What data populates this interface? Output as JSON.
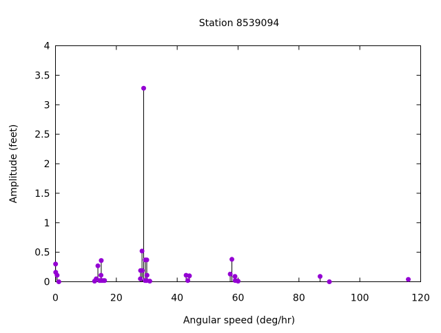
{
  "chart_data": {
    "type": "scatter",
    "style": "impulses-with-points",
    "title": "Station 8539094",
    "xlabel": "Angular speed (deg/hr)",
    "ylabel": "Amplitude (feet)",
    "xlim": [
      0,
      120
    ],
    "ylim": [
      0,
      4
    ],
    "xticks": [
      0,
      20,
      40,
      60,
      80,
      100,
      120
    ],
    "yticks": [
      0,
      0.5,
      1,
      1.5,
      2,
      2.5,
      3,
      3.5,
      4
    ],
    "grid": false,
    "legend": "none",
    "point_color": "#9400d3",
    "stem_color": "#000000",
    "x": [
      0.04,
      0.08,
      0.54,
      1.1,
      12.85,
      13.4,
      13.94,
      14.5,
      14.96,
      15.0,
      15.04,
      15.59,
      16.14,
      27.9,
      27.97,
      28.44,
      28.51,
      28.98,
      29.46,
      29.53,
      29.96,
      30.0,
      30.08,
      31.0,
      42.93,
      43.48,
      44.03,
      57.42,
      57.97,
      58.98,
      59.07,
      60.0,
      86.95,
      90.0,
      115.94
    ],
    "y": [
      0.3,
      0.16,
      0.11,
      0.0,
      0.01,
      0.05,
      0.27,
      0.02,
      0.11,
      0.02,
      0.36,
      0.02,
      0.02,
      0.05,
      0.19,
      0.52,
      0.19,
      3.28,
      0.02,
      0.37,
      0.02,
      0.37,
      0.11,
      0.01,
      0.11,
      0.02,
      0.1,
      0.13,
      0.38,
      0.09,
      0.02,
      0.01,
      0.09,
      0.0,
      0.04
    ]
  }
}
